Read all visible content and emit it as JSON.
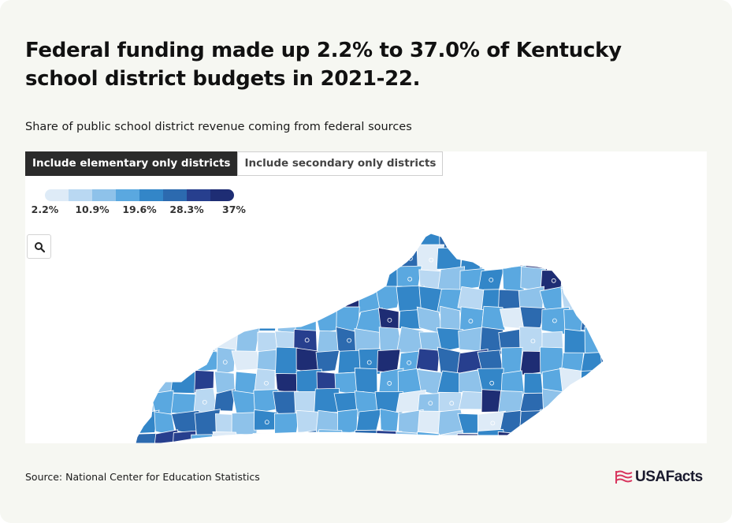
{
  "header": {
    "title": "Federal funding made up 2.2% to 37.0% of Kentucky school district budgets in 2021-22.",
    "subtitle": "Share of public school district revenue coming from federal sources"
  },
  "tabs": [
    {
      "label": "Include elementary only districts",
      "active": true
    },
    {
      "label": "Include secondary only districts",
      "active": false
    }
  ],
  "legend": {
    "colors": [
      "#deebf7",
      "#b9d8f2",
      "#8ec2ea",
      "#5aa8e0",
      "#3386c8",
      "#2c6aaf",
      "#273f8e",
      "#1e2d74"
    ],
    "labels": [
      "2.2%",
      "10.9%",
      "19.6%",
      "28.3%",
      "37%"
    ]
  },
  "controls": {
    "zoom_icon": "search-icon"
  },
  "map": {
    "region": "Kentucky",
    "background": "#ffffff",
    "border_color": "#ffffff"
  },
  "footer": {
    "source": "Source: National Center for Education Statistics",
    "logo": "USAFacts",
    "logo_colors": {
      "flag": "#d8375f",
      "text": "#1a1a2e"
    }
  }
}
